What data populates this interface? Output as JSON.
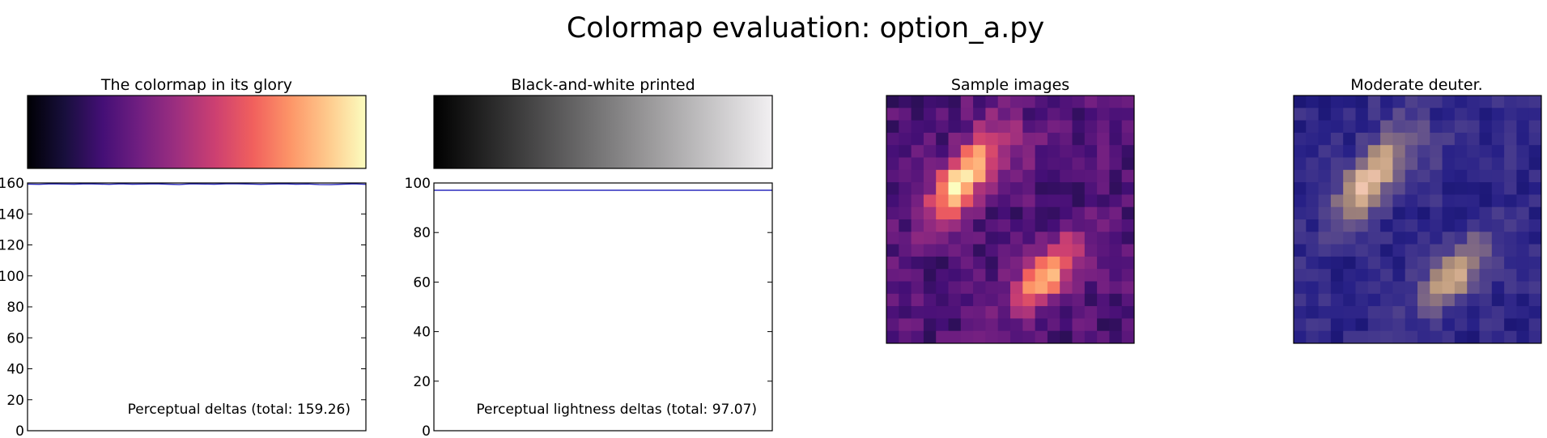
{
  "figure": {
    "title": "Colormap evaluation: option_a.py"
  },
  "colors": {
    "line": "#2b2bbd",
    "frame": "#000000",
    "magma_stops": [
      "#000004",
      "#180f3d",
      "#440f76",
      "#721f81",
      "#9e2f7f",
      "#cd4071",
      "#f1605d",
      "#fd9668",
      "#feca8d",
      "#fcfdbf"
    ]
  },
  "chart_data": [
    {
      "type": "image",
      "title": "The colormap in its glory",
      "description_kind": "colorbar",
      "colormap": "magma"
    },
    {
      "type": "image",
      "title": "Black-and-white printed",
      "description_kind": "grayscale colorbar"
    },
    {
      "type": "line",
      "title": "",
      "xlabel": "",
      "ylabel": "",
      "ylim": [
        0,
        160
      ],
      "yticks": [
        0,
        20,
        40,
        60,
        80,
        100,
        120,
        140,
        160
      ],
      "series": [
        {
          "values": [
            159.26,
            159.1,
            159.4,
            159.3,
            159.2,
            159.5,
            159.3,
            159.1,
            159.4,
            159.2,
            159.3,
            159.5,
            159.2,
            159.0,
            159.4,
            159.3,
            159.2,
            159.4,
            159.5,
            159.3,
            159.1,
            159.3,
            159.4,
            159.2,
            159.3,
            159.0,
            158.9,
            159.2,
            159.4,
            159.1
          ]
        }
      ],
      "annotation": "Perceptual deltas (total: 159.26)"
    },
    {
      "type": "line",
      "title": "",
      "xlabel": "",
      "ylabel": "",
      "ylim": [
        0,
        100
      ],
      "yticks": [
        0,
        20,
        40,
        60,
        80,
        100
      ],
      "series": [
        {
          "values": [
            97.07,
            97.07,
            97.07,
            97.07,
            97.07,
            97.07,
            97.07,
            97.07,
            97.07,
            97.07
          ]
        }
      ],
      "annotation": "Perceptual lightness deltas (total: 97.07)"
    },
    {
      "type": "heatmap",
      "title": "Sample images",
      "colormap": "magma"
    },
    {
      "type": "heatmap",
      "title": "Moderate deuter.",
      "colormap": "deuteranomaly-simulated magma"
    }
  ]
}
